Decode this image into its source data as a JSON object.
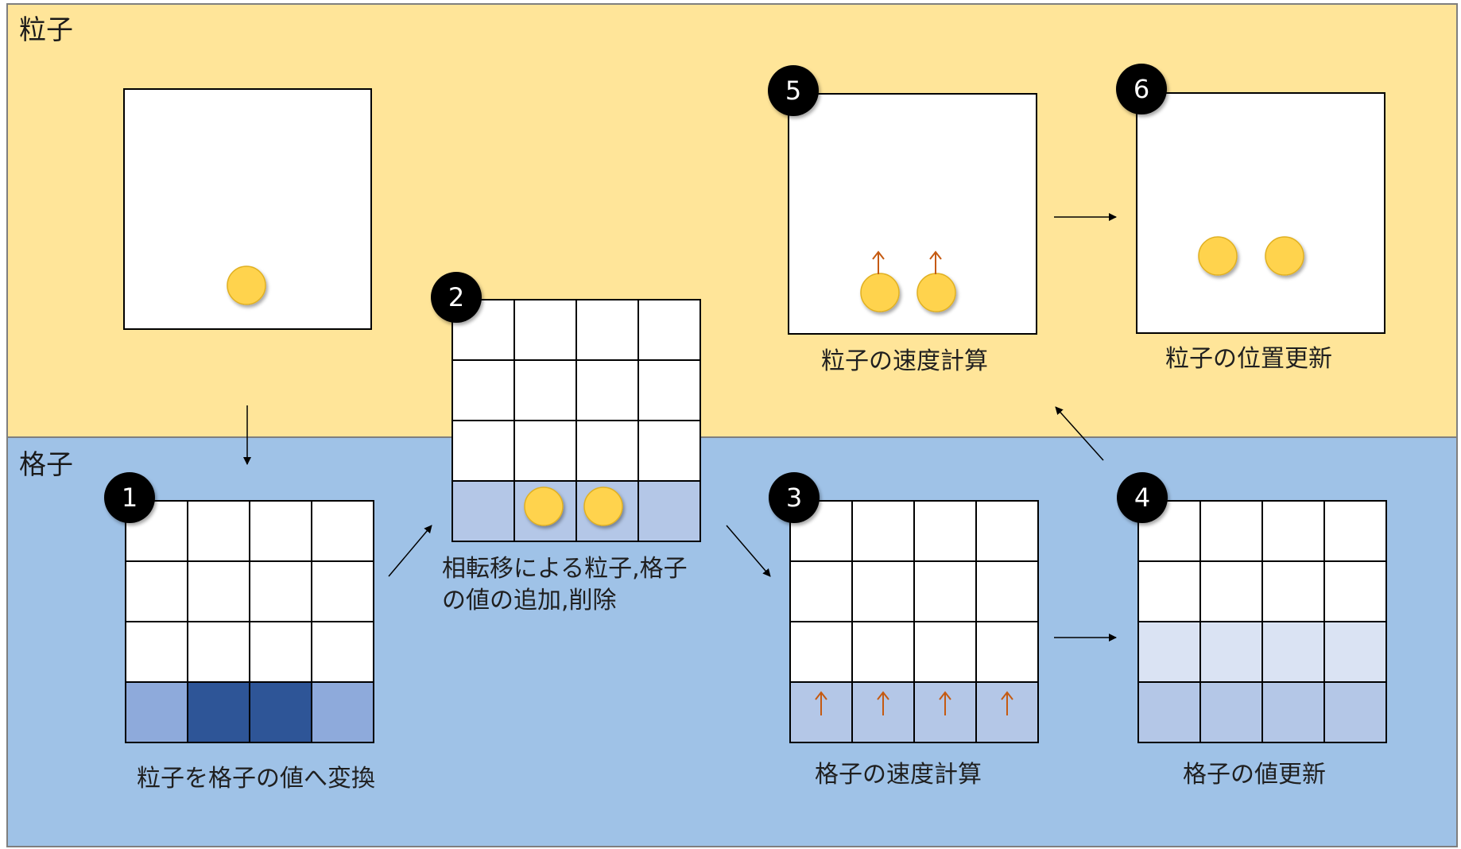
{
  "sections": {
    "particle_title": "粒子",
    "grid_title": "格子"
  },
  "steps": [
    {
      "number": "1",
      "caption": "粒子を格子の値へ変換"
    },
    {
      "number": "2",
      "caption": "相転移による粒子,格子の値の追加,削除"
    },
    {
      "number": "3",
      "caption": "格子の速度計算"
    },
    {
      "number": "4",
      "caption": "格子の値更新"
    },
    {
      "number": "5",
      "caption": "粒子の速度計算"
    },
    {
      "number": "6",
      "caption": "粒子の位置更新"
    }
  ],
  "colors": {
    "particle_band": "#ffe599",
    "grid_band": "#9fc2e7",
    "particle_fill": "#ffd34d",
    "velocity_arrow": "#c55a11",
    "cell_dark": "#2e5597",
    "cell_medium": "#8eaadb",
    "cell_light": "#b4c7e7",
    "cell_pale": "#dae3f3"
  }
}
